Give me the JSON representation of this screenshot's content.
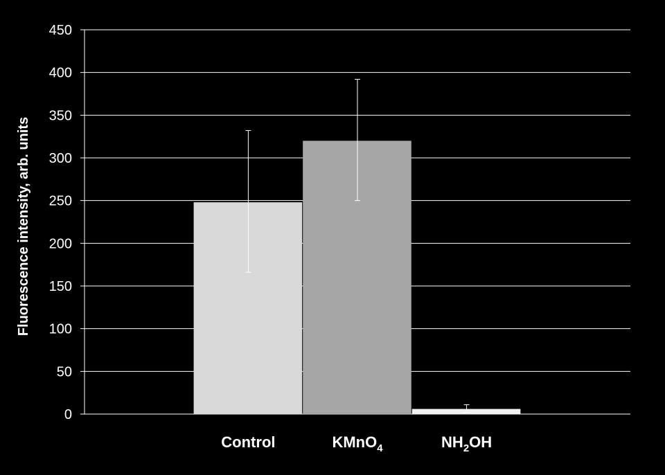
{
  "chart_data": {
    "type": "bar",
    "categories": [
      {
        "main": "Control",
        "sub": "",
        "tail": ""
      },
      {
        "main": "KMnO",
        "sub": "4",
        "tail": ""
      },
      {
        "main": "NH",
        "sub": "2",
        "tail": "OH"
      }
    ],
    "values": [
      248,
      320,
      6
    ],
    "error_low": [
      166,
      250,
      2
    ],
    "error_high": [
      332,
      392,
      11
    ],
    "ylabel": "Fluorescence intensity, arb. units",
    "ylim": [
      0,
      450
    ],
    "ytick_step": 50,
    "grid": true,
    "colors": {
      "background": "#000000",
      "bars": [
        "#d9d9d9",
        "#a6a6a6",
        "#f2f2f2"
      ],
      "grid": "#ffffff",
      "error_bar": "#ffffff",
      "text": "#ffffff"
    }
  }
}
